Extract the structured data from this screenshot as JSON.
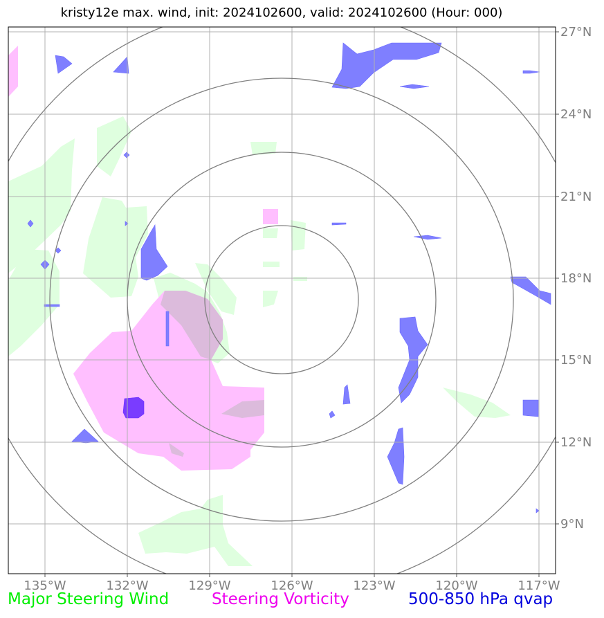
{
  "title": "kristy12e max. wind, init: 2024102600, valid: 2024102600 (Hour: 000)",
  "lon_labels": [
    "135°W",
    "132°W",
    "129°W",
    "126°W",
    "123°W",
    "120°W",
    "117°W"
  ],
  "lat_labels": [
    "27°N",
    "24°N",
    "21°N",
    "18°N",
    "15°N",
    "12°N",
    "9°N"
  ],
  "legend": {
    "wind": "Major Steering Wind",
    "vorticity": "Steering Vorticity",
    "qvap": "500-850 hPa qvap"
  },
  "colors": {
    "wind_fill": "#dfffdf",
    "vorticity_fill": "#ffbfff",
    "qvap_fill": "#7f7fff",
    "overlap_fill": "#dcbbdc",
    "core_fill": "#7a3cff",
    "grid": "#b0b0b0",
    "rings": "#808080"
  }
}
